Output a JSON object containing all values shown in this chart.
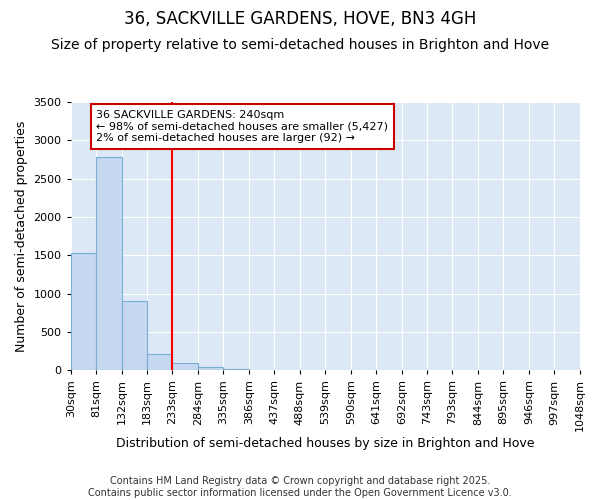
{
  "title": "36, SACKVILLE GARDENS, HOVE, BN3 4GH",
  "subtitle": "Size of property relative to semi-detached houses in Brighton and Hove",
  "xlabel": "Distribution of semi-detached houses by size in Brighton and Hove",
  "ylabel": "Number of semi-detached properties",
  "bin_edges": [
    30,
    81,
    132,
    183,
    233,
    284,
    335,
    386,
    437,
    488,
    539,
    590,
    641,
    692,
    743,
    793,
    844,
    895,
    946,
    997,
    1048
  ],
  "bar_heights": [
    1530,
    2780,
    910,
    210,
    95,
    40,
    20,
    0,
    0,
    0,
    0,
    0,
    0,
    0,
    0,
    0,
    0,
    0,
    0,
    0
  ],
  "bar_color": "#c5d8f0",
  "bar_edge_color": "#7aadd4",
  "red_line_x": 233,
  "ylim": [
    0,
    3500
  ],
  "annotation_title": "36 SACKVILLE GARDENS: 240sqm",
  "annotation_line1": "← 98% of semi-detached houses are smaller (5,427)",
  "annotation_line2": "2% of semi-detached houses are larger (92) →",
  "annotation_box_color": "#ffffff",
  "annotation_box_edge": "#cc0000",
  "footer_line1": "Contains HM Land Registry data © Crown copyright and database right 2025.",
  "footer_line2": "Contains public sector information licensed under the Open Government Licence v3.0.",
  "fig_bg_color": "#ffffff",
  "ax_bg_color": "#dce8f5",
  "grid_color": "#ffffff",
  "title_fontsize": 12,
  "subtitle_fontsize": 10,
  "axis_label_fontsize": 9,
  "tick_fontsize": 8,
  "annotation_fontsize": 8,
  "footer_fontsize": 7
}
